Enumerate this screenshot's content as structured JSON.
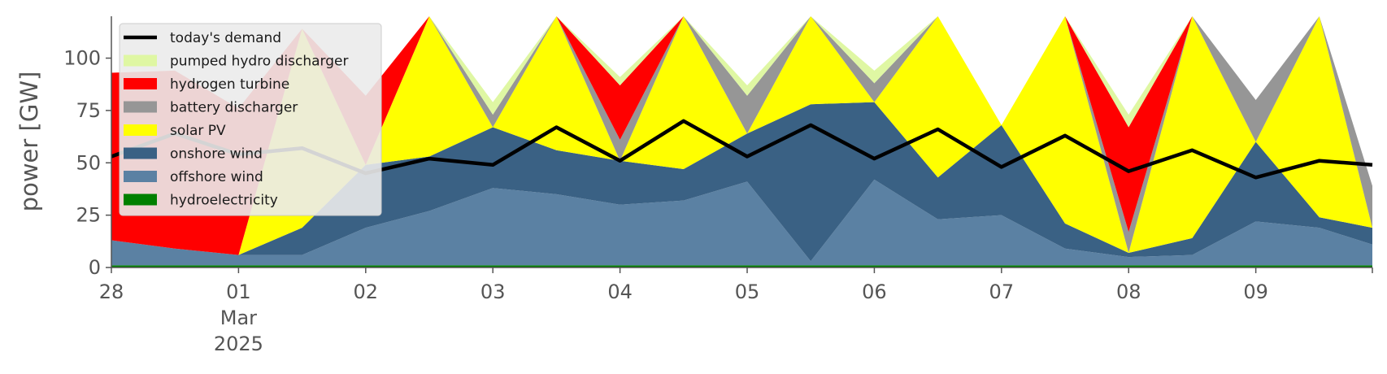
{
  "chart_data": {
    "type": "area",
    "ylabel": "power [GW]",
    "ylim": [
      0,
      120
    ],
    "yticks": [
      0,
      25,
      50,
      75,
      100
    ],
    "xlim": [
      "2025-02-28T00:00",
      "2025-03-09T22:00"
    ],
    "xticks": [
      {
        "t": "2025-02-28",
        "label": "28"
      },
      {
        "t": "2025-03-01",
        "label": "01",
        "sub1": "Mar",
        "sub2": "2025"
      },
      {
        "t": "2025-03-02",
        "label": "02"
      },
      {
        "t": "2025-03-03",
        "label": "03"
      },
      {
        "t": "2025-03-04",
        "label": "04"
      },
      {
        "t": "2025-03-05",
        "label": "05"
      },
      {
        "t": "2025-03-06",
        "label": "06"
      },
      {
        "t": "2025-03-07",
        "label": "07"
      },
      {
        "t": "2025-03-08",
        "label": "08"
      },
      {
        "t": "2025-03-09",
        "label": "09"
      }
    ],
    "legend_position": "upper-left",
    "stack_order": [
      "hydroelectricity",
      "offshore wind",
      "onshore wind",
      "solar PV",
      "battery discharger",
      "hydrogen turbine",
      "pumped hydro discharger"
    ],
    "x": [
      "2025-02-28T00:00",
      "2025-02-28T12:00",
      "2025-03-01T00:00",
      "2025-03-01T12:00",
      "2025-03-02T00:00",
      "2025-03-02T12:00",
      "2025-03-03T00:00",
      "2025-03-03T12:00",
      "2025-03-04T00:00",
      "2025-03-04T12:00",
      "2025-03-05T00:00",
      "2025-03-05T12:00",
      "2025-03-06T00:00",
      "2025-03-06T12:00",
      "2025-03-07T00:00",
      "2025-03-07T12:00",
      "2025-03-08T00:00",
      "2025-03-08T12:00",
      "2025-03-09T00:00",
      "2025-03-09T12:00",
      "2025-03-09T22:00"
    ],
    "series": [
      {
        "name": "hydroelectricity",
        "color": "#008000",
        "values": [
          1,
          1,
          1,
          1,
          1,
          1,
          1,
          1,
          1,
          1,
          1,
          1,
          1,
          1,
          1,
          1,
          1,
          1,
          1,
          1,
          1
        ]
      },
      {
        "name": "offshore wind",
        "color": "#5b81a3",
        "values": [
          12,
          8,
          5,
          5,
          18,
          26,
          37,
          34,
          29,
          31,
          40,
          2,
          41,
          22,
          24,
          8,
          4,
          5,
          21,
          18,
          10
        ]
      },
      {
        "name": "onshore wind",
        "color": "#3a6184",
        "values": [
          0,
          0,
          0,
          13,
          30,
          26,
          29,
          21,
          21,
          15,
          23,
          75,
          37,
          20,
          43,
          12,
          2,
          8,
          38,
          5,
          8
        ]
      },
      {
        "name": "solar PV",
        "color": "#ffff00",
        "values": [
          0,
          0,
          0,
          95,
          0,
          120,
          0,
          120,
          0,
          120,
          0,
          120,
          0,
          120,
          0,
          120,
          0,
          120,
          0,
          120,
          0
        ]
      },
      {
        "name": "battery discharger",
        "color": "#969696",
        "values": [
          0,
          0,
          0,
          0,
          0,
          7,
          6,
          0,
          10,
          0,
          18,
          0,
          9,
          0,
          0,
          0,
          10,
          0,
          20,
          0,
          20
        ]
      },
      {
        "name": "hydrogen turbine",
        "color": "#ff0000",
        "values": [
          80,
          85,
          70,
          0,
          33,
          0,
          0,
          0,
          26,
          0,
          0,
          0,
          0,
          0,
          0,
          0,
          50,
          0,
          0,
          0,
          0
        ]
      },
      {
        "name": "pumped hydro discharger",
        "color": "#dff7a3",
        "values": [
          0,
          0,
          0,
          0,
          0,
          0,
          6,
          0,
          4,
          0,
          5,
          0,
          6,
          0,
          0,
          0,
          6,
          0,
          0,
          0,
          0
        ]
      }
    ],
    "demand": {
      "name": "today's demand",
      "color": "#000000",
      "values": [
        53,
        64,
        54,
        57,
        45,
        52,
        49,
        67,
        51,
        70,
        53,
        68,
        52,
        66,
        48,
        63,
        46,
        56,
        43,
        51,
        49
      ]
    },
    "legend": [
      {
        "label": "today's demand",
        "color": "#000000",
        "kind": "line"
      },
      {
        "label": "pumped hydro discharger",
        "color": "#dff7a3",
        "kind": "patch"
      },
      {
        "label": "hydrogen turbine",
        "color": "#ff0000",
        "kind": "patch"
      },
      {
        "label": "battery discharger",
        "color": "#969696",
        "kind": "patch"
      },
      {
        "label": "solar PV",
        "color": "#ffff00",
        "kind": "patch"
      },
      {
        "label": "onshore wind",
        "color": "#3a6184",
        "kind": "patch"
      },
      {
        "label": "offshore wind",
        "color": "#5b81a3",
        "kind": "patch"
      },
      {
        "label": "hydroelectricity",
        "color": "#008000",
        "kind": "patch"
      }
    ]
  }
}
